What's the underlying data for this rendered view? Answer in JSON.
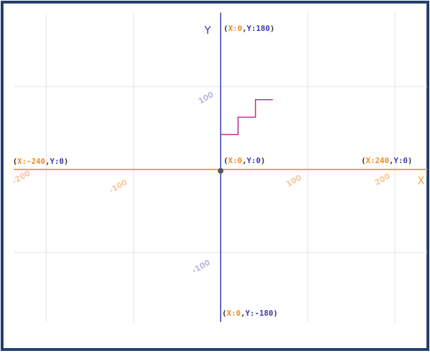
{
  "axes": {
    "x_name": "X",
    "y_name": "Y",
    "x_range": [
      -240,
      240
    ],
    "y_range": [
      -180,
      180
    ],
    "x_ticks": [
      "-200",
      "-100",
      "100",
      "200"
    ],
    "y_ticks": [
      "100",
      "-100"
    ]
  },
  "coords": {
    "top": {
      "open": "(",
      "x_label": "X:",
      "x_value": "0",
      "sep": ",",
      "y_label": "Y:",
      "y_value": "180",
      "close": ")"
    },
    "left": {
      "open": "(",
      "x_label": "X:",
      "x_value": "-240",
      "sep": ",",
      "y_label": "Y:",
      "y_value": "0",
      "close": ")"
    },
    "origin": {
      "open": "(",
      "x_label": "X:",
      "x_value": "0",
      "sep": ",",
      "y_label": "Y:",
      "y_value": "0",
      "close": ")"
    },
    "right": {
      "open": "(",
      "x_label": "X:",
      "x_value": "240",
      "sep": ",",
      "y_label": "Y:",
      "y_value": "0",
      "close": ")"
    },
    "bottom": {
      "open": "(",
      "x_label": "X:",
      "x_value": "0",
      "sep": ",",
      "y_label": "Y:",
      "y_value": "-180",
      "close": ")"
    }
  },
  "path": {
    "points": [
      [
        0,
        40
      ],
      [
        20,
        40
      ],
      [
        20,
        60
      ],
      [
        40,
        60
      ],
      [
        40,
        80
      ],
      [
        60,
        80
      ]
    ]
  },
  "colors": {
    "frame": "#1f3f6e",
    "x_axis": "#f4a23a",
    "y_axis": "#3b3bb0",
    "path": "#c0288f",
    "grid": "#e2e2e2"
  }
}
